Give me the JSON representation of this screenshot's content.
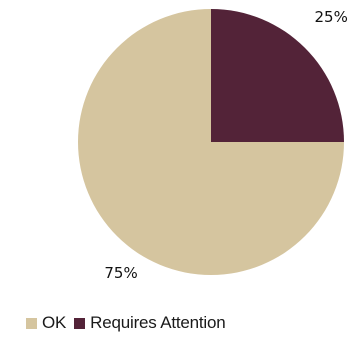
{
  "chart_data": {
    "type": "pie",
    "title": "",
    "categories": [
      "OK",
      "Requires Attention"
    ],
    "values": [
      75,
      25
    ],
    "value_labels": [
      "75%",
      "25%"
    ],
    "colors": [
      "#d5c59f",
      "#532338"
    ],
    "legend_position": "bottom-left",
    "start_angle": "top, clockwise (Requires Attention first)"
  },
  "legend": {
    "items": [
      {
        "label": "OK",
        "color": "#d5c59f"
      },
      {
        "label": "Requires Attention",
        "color": "#532338"
      }
    ]
  }
}
